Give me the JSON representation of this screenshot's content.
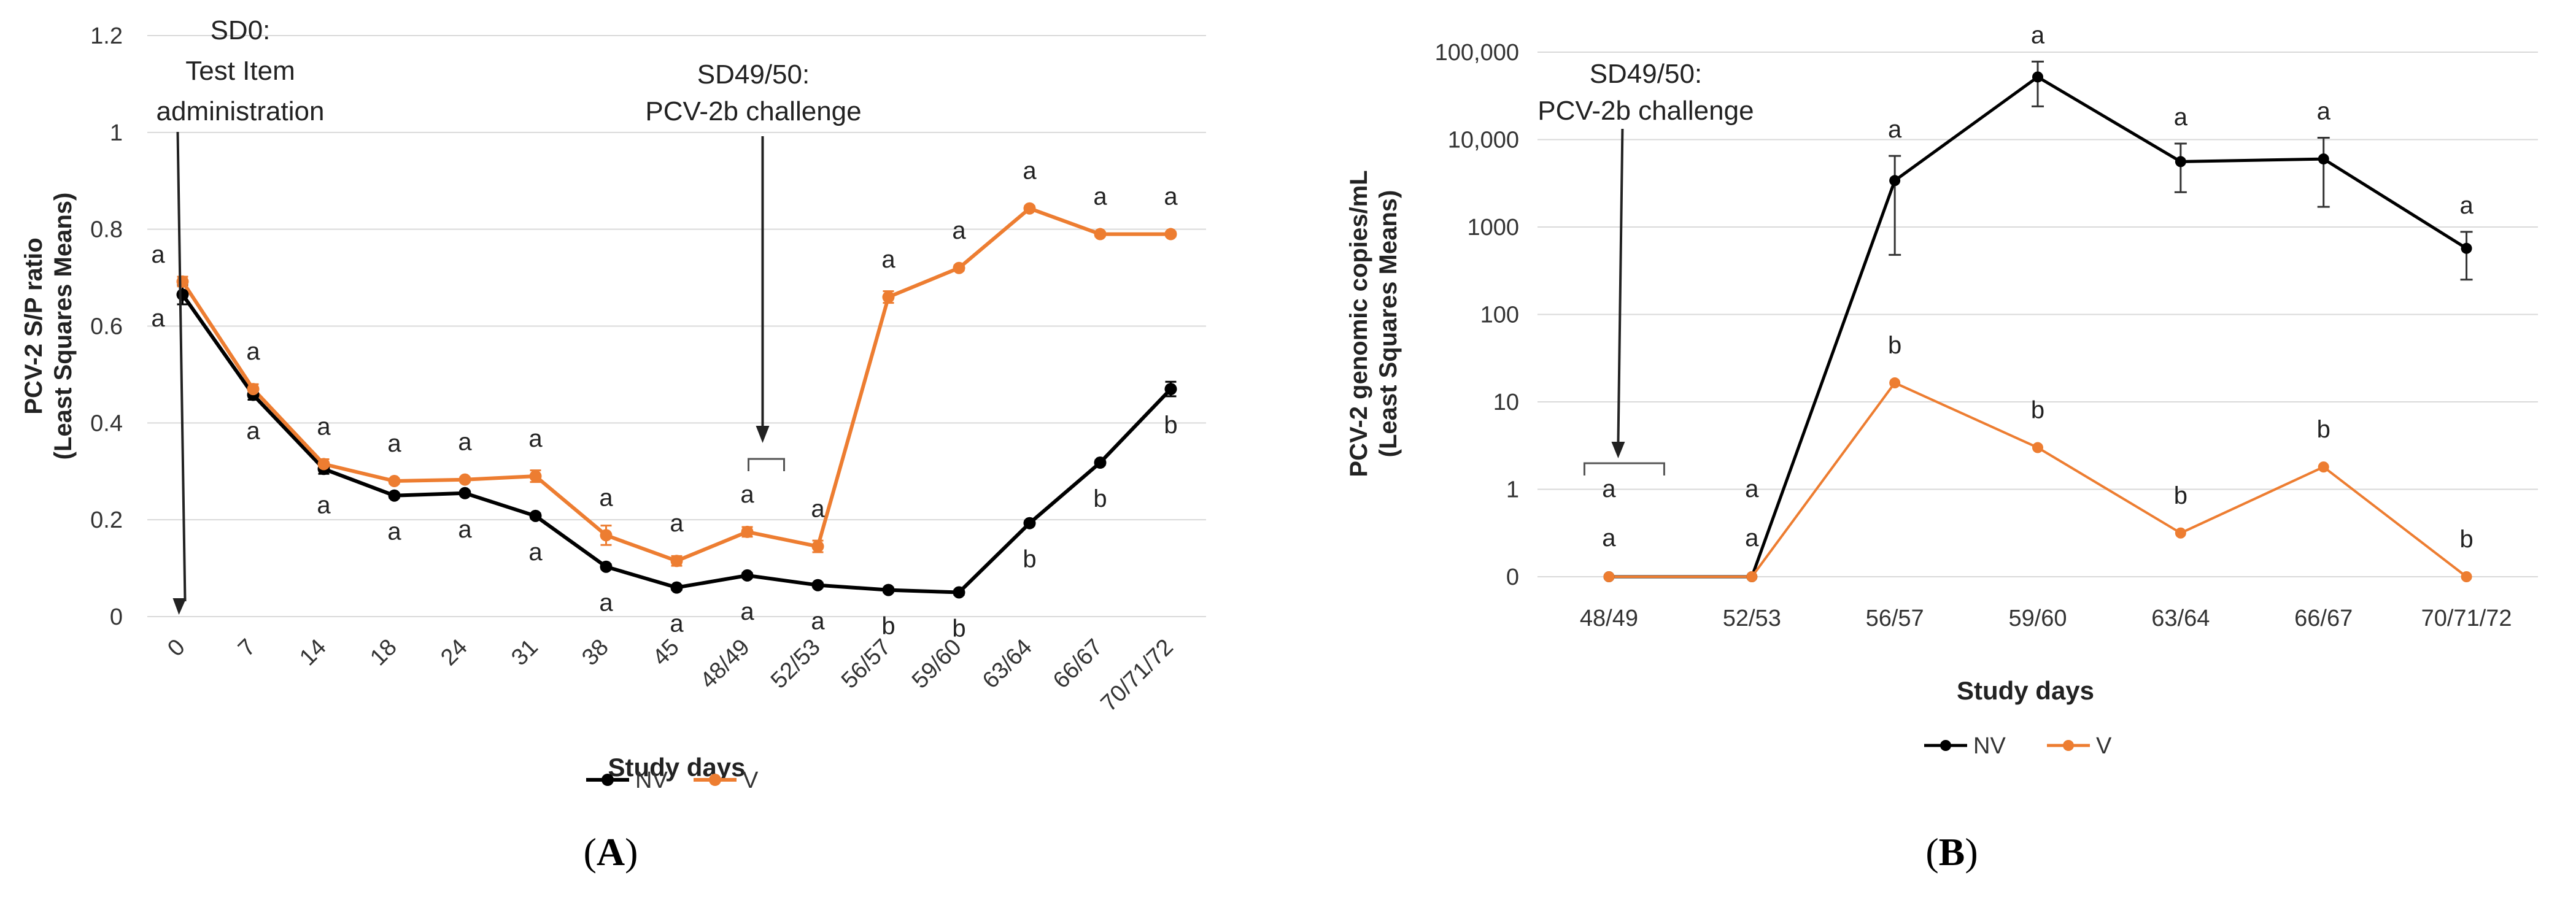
{
  "chart_data": [
    {
      "type": "line",
      "panel_label": "A",
      "panel_text_open": "(",
      "panel_text_close": ")",
      "xlabel": "Study days",
      "ylabel": [
        "PCV-2 S/P ratio",
        "(Least Squares Means)"
      ],
      "categories": [
        "0",
        "7",
        "14",
        "18",
        "24",
        "31",
        "38",
        "45",
        "48/49",
        "52/53",
        "56/57",
        "59/60",
        "63/64",
        "66/67",
        "70/71/72"
      ],
      "y_ticks": [
        "0",
        "0.2",
        "0.4",
        "0.6",
        "0.8",
        "1",
        "1.2"
      ],
      "ylim": [
        0,
        1.2
      ],
      "grid": true,
      "legend": "bottom",
      "series": [
        {
          "name": "NV",
          "color": "#000000",
          "values": [
            0.665,
            0.458,
            0.305,
            0.25,
            0.255,
            0.208,
            0.103,
            0.06,
            0.085,
            0.065,
            0.055,
            0.05,
            0.193,
            0.318,
            0.47
          ],
          "errors": [
            0.02,
            0.01,
            0.01,
            0.005,
            0.005,
            0.005,
            0.005,
            0.005,
            0.005,
            0.005,
            0.005,
            0.005,
            0.005,
            0.005,
            0.015
          ],
          "letters": [
            "a",
            "a",
            "a",
            "a",
            "a",
            "a",
            "a",
            "a",
            "a",
            "a",
            "b",
            "b",
            "b",
            "b",
            "b"
          ]
        },
        {
          "name": "V",
          "color": "#ED7D31",
          "values": [
            0.692,
            0.47,
            0.315,
            0.28,
            0.283,
            0.29,
            0.168,
            0.115,
            0.175,
            0.145,
            0.66,
            0.72,
            0.843,
            0.79,
            0.79
          ],
          "errors": [
            0.01,
            0.01,
            0.01,
            0.005,
            0.005,
            0.012,
            0.02,
            0.01,
            0.01,
            0.012,
            0.012,
            0.005,
            0.005,
            0.005,
            0.005
          ],
          "letters": [
            "a",
            "a",
            "a",
            "a",
            "a",
            "a",
            "a",
            "a",
            "a",
            "a",
            "a",
            "a",
            "a",
            "a",
            "a"
          ]
        }
      ],
      "annotations": [
        {
          "lines": [
            "SD0:",
            "Test Item",
            "administration"
          ],
          "at_category": "0"
        },
        {
          "lines": [
            "SD49/50:",
            "PCV-2b challenge"
          ],
          "at_category": "48/49"
        }
      ]
    },
    {
      "type": "line",
      "panel_label": "B",
      "panel_text_open": "(",
      "panel_text_close": ")",
      "xlabel": "Study days",
      "ylabel": [
        "PCV-2 genomic copies/mL",
        "(Least Squares Means)"
      ],
      "y_scale": "log (with 0 baseline)",
      "categories": [
        "48/49",
        "52/53",
        "56/57",
        "59/60",
        "63/64",
        "66/67",
        "70/71/72"
      ],
      "y_ticks": [
        "0",
        "1",
        "10",
        "100",
        "1000",
        "10,000",
        "100,000"
      ],
      "grid": true,
      "legend": "bottom",
      "series": [
        {
          "name": "NV",
          "color": "#000000",
          "values": [
            0,
            0,
            3400,
            52000,
            5600,
            6000,
            570
          ],
          "err_low": [
            null,
            null,
            480,
            24000,
            2500,
            1700,
            250
          ],
          "err_high": [
            null,
            null,
            6500,
            78000,
            9000,
            10500,
            880
          ],
          "letters": [
            "a",
            "a",
            "a",
            "a",
            "a",
            "a",
            "a"
          ]
        },
        {
          "name": "V",
          "color": "#ED7D31",
          "values": [
            0,
            0,
            16.5,
            3,
            0.5,
            1.8,
            0
          ],
          "letters": [
            "a",
            "a",
            "b",
            "b",
            "b",
            "b",
            "b"
          ]
        }
      ],
      "annotations": [
        {
          "lines": [
            "SD49/50:",
            "PCV-2b challenge"
          ],
          "at_category": "48/49"
        }
      ]
    }
  ]
}
